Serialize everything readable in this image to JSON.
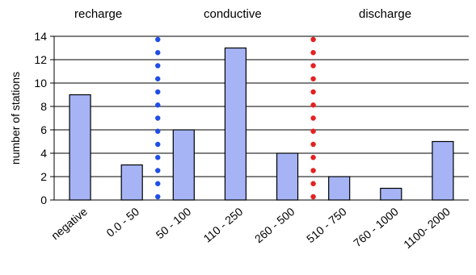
{
  "chart_data": {
    "type": "bar",
    "categories": [
      "negative",
      "0.0 - 50",
      "50 - 100",
      "110 - 250",
      "260 - 500",
      "510 - 750",
      "760 - 1000",
      "1100- 2000"
    ],
    "values": [
      9,
      3,
      6,
      13,
      4,
      2,
      1,
      5
    ],
    "ylabel": "number of stations",
    "xlabel": "",
    "ylim": [
      0,
      14
    ],
    "yticks": [
      0,
      2,
      4,
      6,
      8,
      10,
      12,
      14
    ],
    "grid": true,
    "bar_color": "#a6b4f6",
    "bar_edge_color": "#000000",
    "zones": [
      {
        "label": "recharge"
      },
      {
        "label": "conductive"
      },
      {
        "label": "discharge"
      }
    ],
    "dividers": [
      {
        "between": [
          1,
          2
        ],
        "color": "#1f4fe6"
      },
      {
        "between": [
          4,
          5
        ],
        "color": "#e62020"
      }
    ]
  }
}
